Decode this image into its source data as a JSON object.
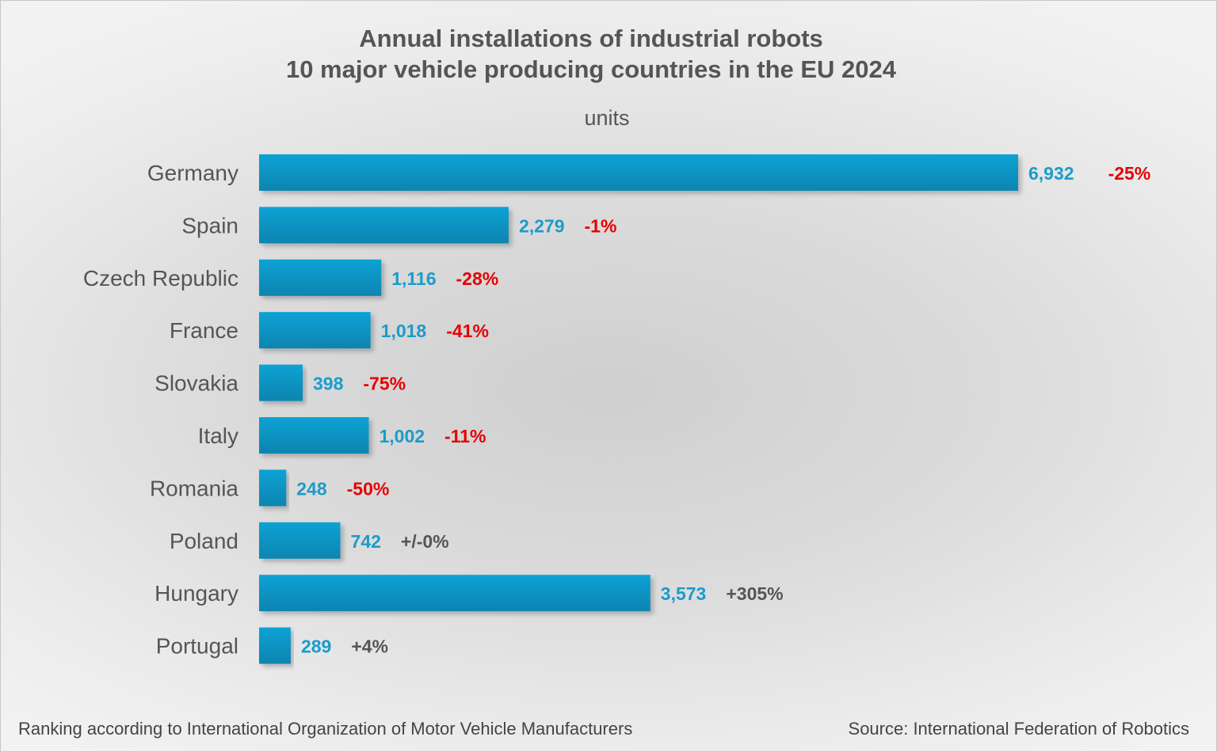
{
  "chart_data": {
    "type": "bar",
    "orientation": "horizontal",
    "title": "Annual installations of industrial robots",
    "subtitle": "10 major vehicle producing countries in the EU 2024",
    "unit_label": "units",
    "categories": [
      "Germany",
      "Spain",
      "Czech Republic",
      "France",
      "Slovakia",
      "Italy",
      "Romania",
      "Poland",
      "Hungary",
      "Portugal"
    ],
    "values": [
      6932,
      2279,
      1116,
      1018,
      398,
      1002,
      248,
      742,
      3573,
      289
    ],
    "value_labels": [
      "6,932",
      "2,279",
      "1,116",
      "1,018",
      "398",
      "1,002",
      "248",
      "742",
      "3,573",
      "289"
    ],
    "change_labels": [
      "-25%",
      "-1%",
      "-28%",
      "-41%",
      "-75%",
      "-11%",
      "-50%",
      "+/-0%",
      "+305%",
      "+4%"
    ],
    "xlim": [
      0,
      6932
    ],
    "grid": false,
    "legend": "none",
    "colors": {
      "bar_top": "#0aa2d4",
      "bar_bottom": "#0784b0",
      "value_text": "#1a9ccb",
      "negative_change": "#e60000",
      "nonnegative_change": "#555555"
    }
  },
  "footer": {
    "left": "Ranking according to International Organization of Motor Vehicle Manufacturers",
    "right": "Source: International Federation of Robotics"
  }
}
